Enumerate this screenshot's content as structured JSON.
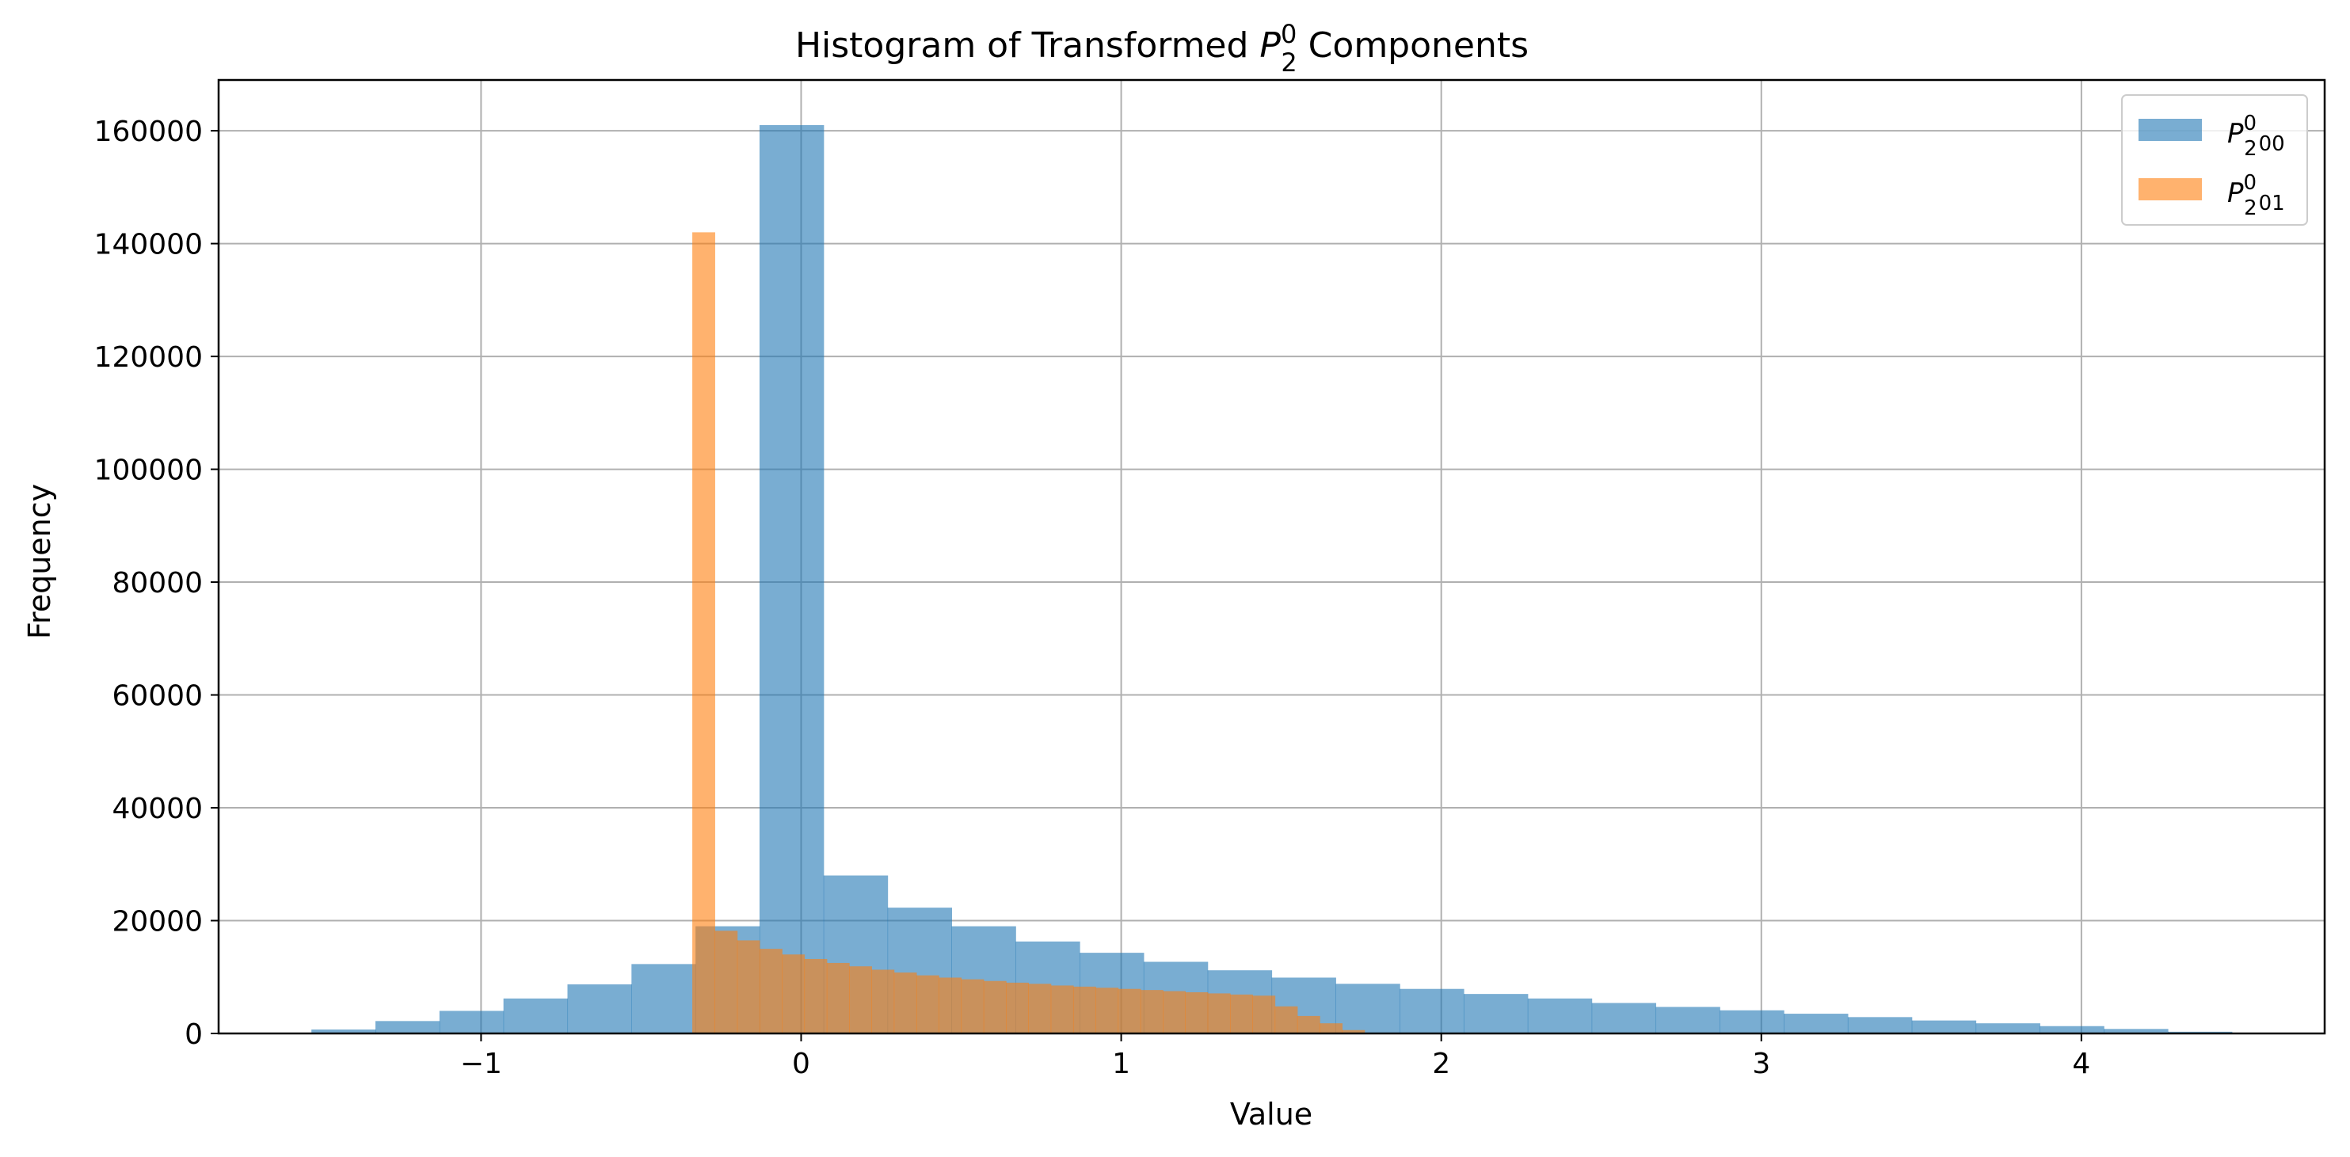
{
  "chart_data": {
    "type": "bar",
    "title_main": "Histogram of Transformed ",
    "title_tail": " Components",
    "title_symbol": "P",
    "title_sub": "2",
    "title_sup": "0",
    "xlabel": "Value",
    "ylabel": "Frequency",
    "xlim": [
      -1.82,
      4.76
    ],
    "ylim": [
      0,
      169000
    ],
    "grid": true,
    "legend_position": "top-right",
    "xticks": [
      -1,
      0,
      1,
      2,
      3,
      4
    ],
    "xtick_labels": [
      "−1",
      "0",
      "1",
      "2",
      "3",
      "4"
    ],
    "yticks": [
      0,
      20000,
      40000,
      60000,
      80000,
      100000,
      120000,
      140000,
      160000
    ],
    "ytick_labels": [
      "0",
      "20000",
      "40000",
      "60000",
      "80000",
      "100000",
      "120000",
      "140000",
      "160000"
    ],
    "series": [
      {
        "legend_symbol": "P",
        "legend_sup": "0",
        "legend_sub": "2",
        "legend_tail": "00",
        "color": "#1f77b4",
        "opacity": 0.6,
        "bin_edges": [
          -1.53,
          -1.33,
          -1.13,
          -0.93,
          -0.73,
          -0.53,
          -0.33,
          -0.13,
          0.07,
          0.27,
          0.47,
          0.67,
          0.87,
          1.07,
          1.27,
          1.47,
          1.67,
          1.87,
          2.07,
          2.27,
          2.47,
          2.67,
          2.87,
          3.07,
          3.27,
          3.47,
          3.67,
          3.87,
          4.07,
          4.27,
          4.47
        ],
        "values": [
          700,
          2200,
          4000,
          6200,
          8700,
          12300,
          19000,
          161000,
          28000,
          22300,
          19000,
          16300,
          14300,
          12700,
          11200,
          9900,
          8800,
          7900,
          7000,
          6200,
          5400,
          4700,
          4100,
          3500,
          2900,
          2300,
          1800,
          1300,
          800,
          300
        ]
      },
      {
        "legend_symbol": "P",
        "legend_sup": "0",
        "legend_sub": "2",
        "legend_tail": "01",
        "color": "#ff7f0e",
        "opacity": 0.6,
        "bin_edges": [
          -0.34,
          -0.27,
          -0.2,
          -0.13,
          -0.06,
          0.01,
          0.08,
          0.15,
          0.22,
          0.29,
          0.36,
          0.43,
          0.5,
          0.57,
          0.64,
          0.71,
          0.78,
          0.85,
          0.92,
          0.99,
          1.06,
          1.13,
          1.2,
          1.27,
          1.34,
          1.41,
          1.48,
          1.55,
          1.62,
          1.69,
          1.76
        ],
        "values": [
          142000,
          18200,
          16500,
          15000,
          14000,
          13200,
          12500,
          11900,
          11300,
          10800,
          10300,
          9900,
          9600,
          9300,
          9000,
          8800,
          8500,
          8300,
          8100,
          7900,
          7700,
          7500,
          7300,
          7100,
          6900,
          6700,
          4800,
          3100,
          1800,
          600
        ]
      }
    ]
  }
}
